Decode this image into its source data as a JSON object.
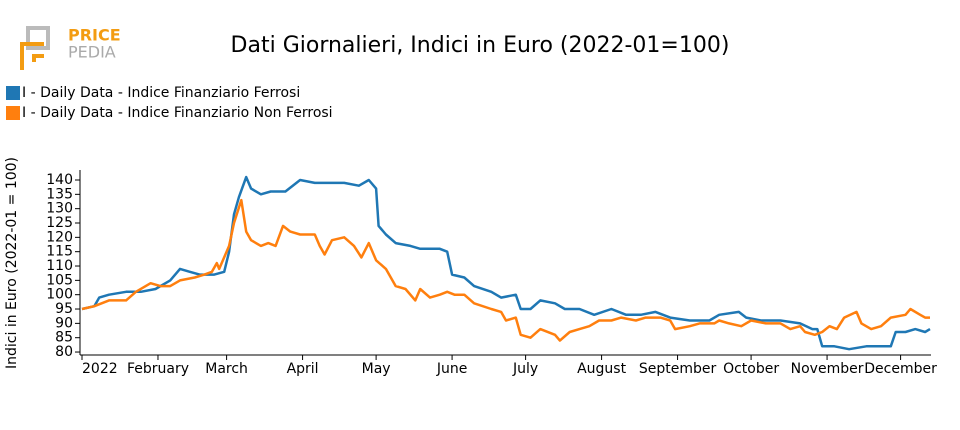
{
  "logo": {
    "line1": "PRICE",
    "line2": "PEDIA"
  },
  "chart_data": {
    "type": "line",
    "title": "Dati Giornalieri, Indici in Euro (2022-01=100)",
    "y_label": "Indici in Euro (2022-01 = 100)",
    "legend": "top-left",
    "xlim": [
      0,
      346
    ],
    "xticks": [
      {
        "value": 0,
        "label": "2022"
      },
      {
        "value": 31,
        "label": "February"
      },
      {
        "value": 59,
        "label": "March"
      },
      {
        "value": 90,
        "label": "April"
      },
      {
        "value": 120,
        "label": "May"
      },
      {
        "value": 151,
        "label": "June"
      },
      {
        "value": 181,
        "label": "July"
      },
      {
        "value": 212,
        "label": "August"
      },
      {
        "value": 243,
        "label": "September"
      },
      {
        "value": 273,
        "label": "October"
      },
      {
        "value": 304,
        "label": "November"
      },
      {
        "value": 334,
        "label": "December"
      }
    ],
    "ylim": [
      79,
      143
    ],
    "yticks": [
      80,
      85,
      90,
      95,
      100,
      105,
      110,
      115,
      120,
      125,
      130,
      135,
      140
    ],
    "series": [
      {
        "name": "I - Daily Data - Indice Finanziario Ferrosi",
        "color": "#1f77b4",
        "x": [
          0,
          5,
          7,
          11,
          18,
          24,
          30,
          36,
          40,
          44,
          48,
          54,
          58,
          60,
          62,
          64,
          67,
          69,
          73,
          77,
          83,
          89,
          95,
          101,
          107,
          113,
          117,
          120,
          121,
          124,
          128,
          134,
          138,
          146,
          149,
          151,
          156,
          160,
          167,
          171,
          177,
          179,
          183,
          187,
          193,
          197,
          203,
          209,
          216,
          222,
          228,
          234,
          240,
          248,
          256,
          260,
          268,
          271,
          277,
          285,
          293,
          298,
          300,
          302,
          307,
          313,
          320,
          326,
          330,
          332,
          336,
          340,
          344,
          346
        ],
        "values": [
          95,
          96,
          99,
          100,
          101,
          101,
          102,
          105,
          109,
          108,
          107,
          107,
          108,
          115,
          128,
          134,
          141,
          137,
          135,
          136,
          136,
          140,
          139,
          139,
          139,
          138,
          140,
          137,
          124,
          121,
          118,
          117,
          116,
          116,
          115,
          107,
          106,
          103,
          101,
          99,
          100,
          95,
          95,
          98,
          97,
          95,
          95,
          93,
          95,
          93,
          93,
          94,
          92,
          91,
          91,
          93,
          94,
          92,
          91,
          91,
          90,
          88,
          88,
          82,
          82,
          81,
          82,
          82,
          82,
          87,
          87,
          88,
          87,
          88
        ]
      },
      {
        "name": "I - Daily Data - Indice Finanziario Non Ferrosi",
        "color": "#ff7f0e",
        "x": [
          0,
          5,
          11,
          18,
          22,
          28,
          32,
          36,
          40,
          46,
          50,
          53,
          55,
          56,
          60,
          62,
          65,
          67,
          69,
          73,
          76,
          79,
          82,
          85,
          89,
          95,
          97,
          99,
          102,
          107,
          111,
          114,
          117,
          120,
          124,
          128,
          132,
          136,
          138,
          142,
          146,
          149,
          152,
          156,
          160,
          167,
          171,
          173,
          177,
          179,
          183,
          187,
          193,
          195,
          199,
          203,
          207,
          211,
          216,
          220,
          226,
          230,
          236,
          240,
          242,
          248,
          252,
          258,
          260,
          264,
          269,
          273,
          279,
          285,
          289,
          293,
          295,
          299,
          302,
          305,
          308,
          311,
          316,
          318,
          322,
          326,
          330,
          336,
          338,
          342,
          344,
          346
        ],
        "values": [
          95,
          96,
          98,
          98,
          101,
          104,
          103,
          103,
          105,
          106,
          107,
          108,
          111,
          109,
          117,
          125,
          133,
          122,
          119,
          117,
          118,
          117,
          124,
          122,
          121,
          121,
          117,
          114,
          119,
          120,
          117,
          113,
          118,
          112,
          109,
          103,
          102,
          98,
          102,
          99,
          100,
          101,
          100,
          100,
          97,
          95,
          94,
          91,
          92,
          86,
          85,
          88,
          86,
          84,
          87,
          88,
          89,
          91,
          91,
          92,
          91,
          92,
          92,
          91,
          88,
          89,
          90,
          90,
          91,
          90,
          89,
          91,
          90,
          90,
          88,
          89,
          87,
          86,
          87,
          89,
          88,
          92,
          94,
          90,
          88,
          89,
          92,
          93,
          95,
          93,
          92,
          92
        ]
      }
    ]
  }
}
